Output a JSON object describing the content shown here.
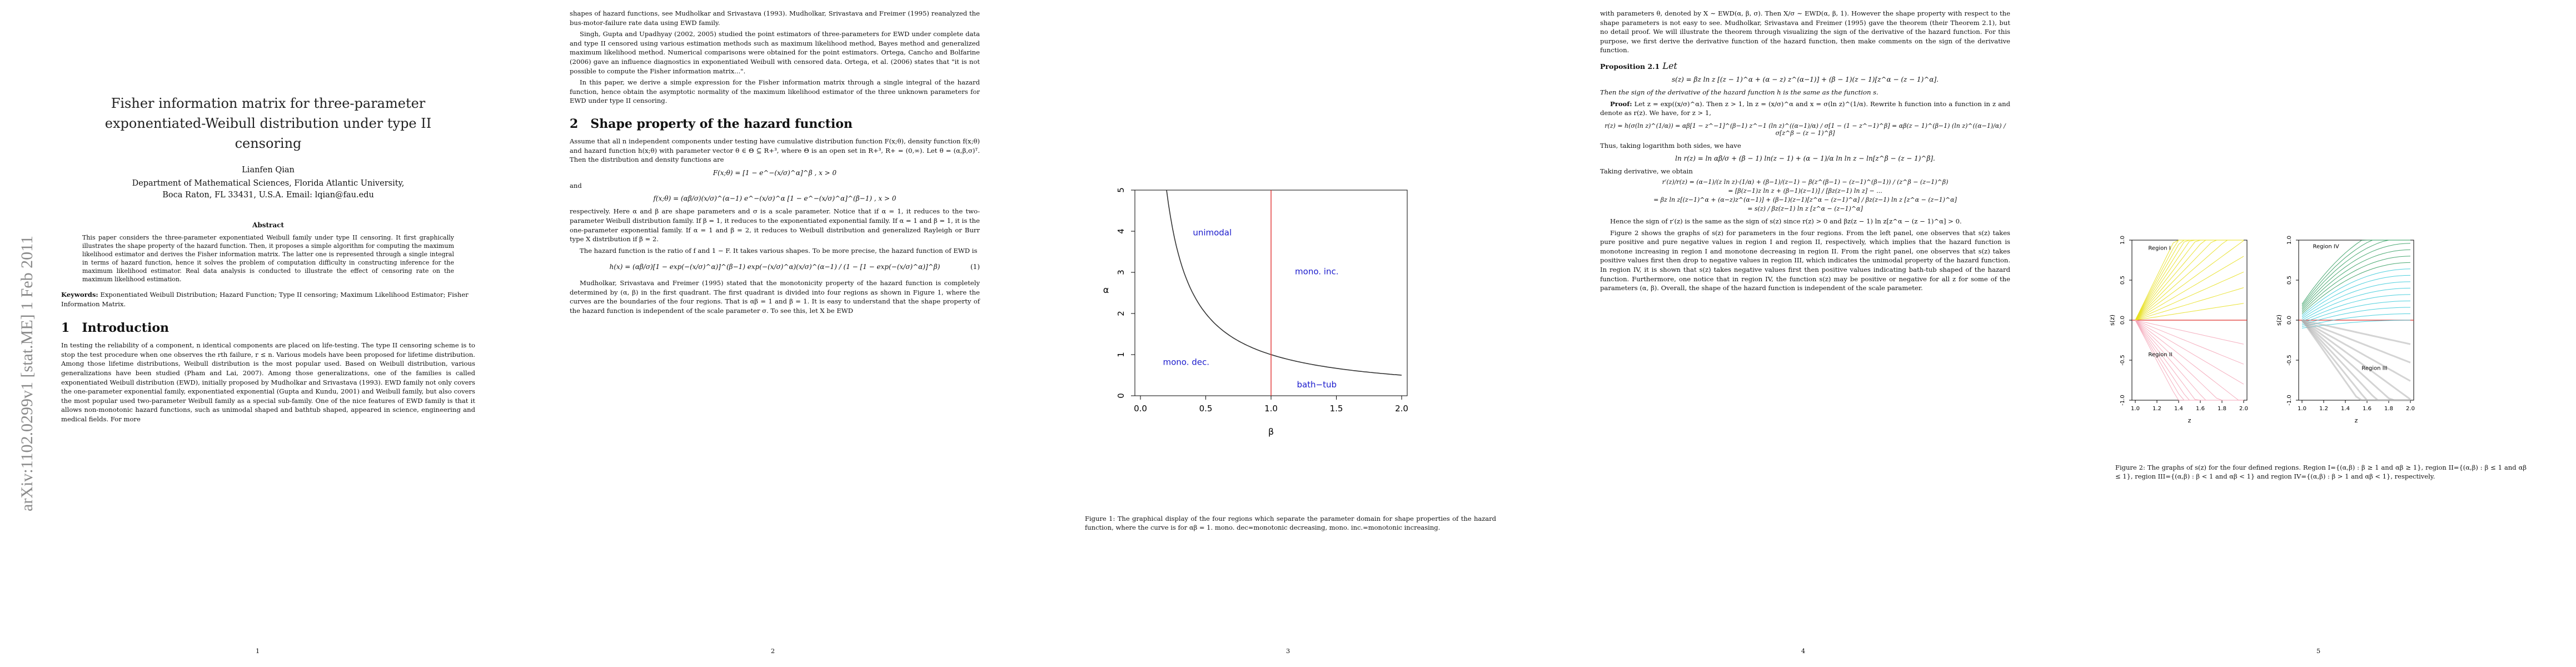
{
  "arxiv_stamp": "arXiv:1102.0299v1  [stat.ME]  1 Feb 2011",
  "page1": {
    "title_lines": [
      "Fisher information matrix for three-parameter",
      "exponentiated-Weibull distribution under type II",
      "censoring"
    ],
    "author": "Lianfen Qian",
    "affiliation_lines": [
      "Department of Mathematical Sciences, Florida Atlantic University,",
      "Boca Raton, FL 33431, U.S.A. Email: lqian@fau.edu"
    ],
    "abstract_heading": "Abstract",
    "abstract": "This paper considers the three-parameter exponentiated Weibull family under type II censoring. It first graphically illustrates the shape property of the hazard function. Then, it proposes a simple algorithm for computing the maximum likelihood estimator and derives the Fisher information matrix. The latter one is represented through a single integral in terms of hazard function, hence it solves the problem of computation difficulty in constructing inference for the maximum likelihood estimator. Real data analysis is conducted to illustrate the effect of censoring rate on the maximum likelihood estimation.",
    "keywords_label": "Keywords:",
    "keywords": "Exponentiated Weibull Distribution; Hazard Function; Type II censoring; Maximum Likelihood Estimator; Fisher Information Matrix.",
    "section_num": "1",
    "section_title": "Introduction",
    "intro": "In testing the reliability of a component, n identical components are placed on life-testing. The type II censoring scheme is to stop the test procedure when one observes the rth failure, r ≤ n. Various models have been proposed for lifetime distribution. Among those lifetime distributions, Weibull distribution is the most popular used. Based on Weibull distribution, various generalizations have been studied (Pham and Lai, 2007). Among those generalizations, one of the families is called exponentiated Weibull distribution (EWD), initially proposed by Mudholkar and Srivastava (1993). EWD family not only covers the one-parameter exponential family, exponentiated exponential (Gupta and Kundu, 2001) and Weibull family, but also covers the most popular used two-parameter Weibull family as a special sub-family. One of the nice features of EWD family is that it allows non-monotonic hazard functions, such as unimodal shaped and bathtub shaped, appeared in science, engineering and medical fields. For more",
    "page_number": "1"
  },
  "page2": {
    "p1": "shapes of hazard functions, see Mudholkar and Srivastava (1993). Mudholkar, Srivastava and Freimer (1995) reanalyzed the bus-motor-failure rate data using EWD family.",
    "p2": "Singh, Gupta and Upadhyay (2002, 2005) studied the point estimators of three-parameters for EWD under complete data and type II censored using various estimation methods such as maximum likelihood method, Bayes method and generalized maximum likelihood method. Numerical comparisons were obtained for the point estimators. Ortega, Cancho and Bolfarine (2006) gave an influence diagnostics in exponentiated Weibull with censored data. Ortega, et al. (2006) states that \"it is not possible to compute the Fisher information matrix...\".",
    "p3": "In this paper, we derive a simple expression for the Fisher information matrix through a single integral of the hazard function, hence obtain the asymptotic normality of the maximum likelihood estimator of the three unknown parameters for EWD under type II censoring.",
    "section_num": "2",
    "section_title": "Shape property of the hazard function",
    "p4": "Assume that all n independent components under testing have cumulative distribution function F(x;θ), density function f(x;θ) and hazard function h(x;θ) with parameter vector θ ∈ Θ ⊆ R+³, where Θ is an open set in R+³, R+ = (0,∞). Let θ = (α,β,σ)ᵀ. Then the distribution and density functions are",
    "eq_F": "F(x;θ) = [1 − e^−(x/σ)^α]^β ,   x > 0",
    "and": "and",
    "eq_f": "f(x;θ) = (αβ/σ)(x/σ)^(α−1) e^−(x/σ)^α [1 − e^−(x/σ)^α]^(β−1) ,   x > 0",
    "p5": "respectively. Here α and β are shape parameters and σ is a scale parameter. Notice that if α = 1, it reduces to the two-parameter Weibull distribution family. If β = 1, it reduces to the exponentiated exponential family. If α = 1 and β = 1, it is the one-parameter exponential family. If α = 1 and β = 2, it reduces to Weibull distribution and generalized Rayleigh or Burr type X distribution if β = 2.",
    "p6": "The hazard function is the ratio of f and 1 − F. It takes various shapes. To be more precise, the hazard function of EWD is",
    "eq_h": "h(x) = (αβ/σ)[1 − exp(−(x/σ)^α)]^(β−1) exp(−(x/σ)^α)(x/σ)^(α−1) / (1 − [1 − exp(−(x/σ)^α)]^β)",
    "eq_h_tag": "(1)",
    "p7": "Mudholkar, Srivastava and Freimer (1995) stated that the monotonicity property of the hazard function is completely determined by (α, β) in the first quadrant. The first quadrant is divided into four regions as shown in Figure 1, where the curves are the boundaries of the four regions. That is αβ = 1 and β = 1. It is easy to understand that the shape property of the hazard function is independent of the scale parameter σ. To see this, let X be EWD",
    "page_number": "2"
  },
  "page3": {
    "caption": "Figure 1: The graphical display of the four regions which separate the parameter domain for shape properties of the hazard function, where the curve is for αβ = 1. mono. dec=monotonic decreasing, mono. inc.=monotonic increasing.",
    "page_number": "3"
  },
  "chart_data": [
    {
      "type": "line",
      "xlabel": "β",
      "ylabel": "α",
      "xlim": [
        0.0,
        2.0
      ],
      "ylim": [
        0,
        5
      ],
      "xticks": [
        "0.0",
        "0.5",
        "1.0",
        "1.5",
        "2.0"
      ],
      "yticks": [
        "0",
        "1",
        "2",
        "3",
        "4",
        "5"
      ],
      "curve": "αβ = 1",
      "curve_color": "#333333",
      "vertical_line_beta": 1.0,
      "vertical_line_color": "#e0312f",
      "region_labels": [
        "unimodal",
        "mono. inc.",
        "mono. dec.",
        "bath−tub"
      ],
      "label_color": "#1a1acc",
      "grid": false
    },
    {
      "type": "line",
      "panel": "left",
      "ylabel": "s(z)",
      "xlabel": "z",
      "xlim": [
        1.0,
        2.0
      ],
      "ylim": [
        -1.0,
        1.0
      ],
      "xticks": [
        "1.0",
        "1.2",
        "1.4",
        "1.6",
        "1.8",
        "2.0"
      ],
      "yticks": [
        "-1.0",
        "-0.5",
        "0.0",
        "0.5",
        "1.0"
      ],
      "regions": [
        "Region I",
        "Region II"
      ],
      "colors": [
        "#e8e020",
        "#f4a6b8",
        "#e0312f"
      ]
    },
    {
      "type": "line",
      "panel": "right",
      "ylabel": "s(z)",
      "xlabel": "z",
      "xlim": [
        1.0,
        2.0
      ],
      "ylim": [
        -1.0,
        1.0
      ],
      "xticks": [
        "1.0",
        "1.2",
        "1.4",
        "1.6",
        "1.8",
        "2.0"
      ],
      "yticks": [
        "-1.0",
        "-0.5",
        "0.0",
        "0.5",
        "1.0"
      ],
      "regions": [
        "Region IV",
        "Region III"
      ],
      "colors": [
        "#30c8d8",
        "#2a9a5a",
        "#b0b0b0",
        "#e0312f"
      ]
    }
  ],
  "page4": {
    "p1": "with parameters θ, denoted by X ∼ EWD(α, β, σ). Then X/σ ∼ EWD(α, β, 1). However the shape property with respect to the shape parameters is not easy to see. Mudholkar, Srivastava and Freimer (1995) gave the theorem (their Theorem 2.1), but no detail proof. We will illustrate the theorem through visualizing the sign of the derivative of the hazard function. For this purpose, we first derive the derivative function of the hazard function, then make comments on the sign of the derivative function.",
    "prop_label": "Proposition 2.1",
    "prop_let": "Let",
    "prop_eq": "s(z) = βz ln z [(z − 1)^α + (α − z) z^(α−1)] + (β − 1)(z − 1)[z^α − (z − 1)^α].",
    "prop_text": "Then the sign of the derivative of the hazard function h is the same as the function s.",
    "proof_label": "Proof:",
    "proof_text": "Let z = exp((x/σ)^α). Then z > 1, ln z = (x/σ)^α and x = σ(ln z)^(1/α). Rewrite h function into a function in z and denote as r(z). We have, for z > 1,",
    "eq_r": "r(z) = h(σ(ln z)^(1/α)) = αβ[1 − z^−1]^(β−1) z^−1 (ln z)^((α−1)/α) / σ[1 − (1 − z^−1)^β] = αβ(z − 1)^(β−1) (ln z)^((α−1)/α) / σ[z^β − (z − 1)^β]",
    "p2": "Thus, taking logarithm both sides, we have",
    "eq_ln": "ln r(z) = ln αβ/σ + (β − 1) ln(z − 1) + (α − 1)/α ln ln z − ln[z^β − (z − 1)^β].",
    "p3": "Taking derivative, we obtain",
    "eq_d1": "r′(z)/r(z) = (α−1)/(z ln z)·(1/α) + (β−1)/(z−1) − β(z^(β−1) − (z−1)^(β−1)) / (z^β − (z−1)^β)",
    "eq_d2": "= [β(z−1)z ln z + (β−1)(z−1)] / [βz(z−1) ln z] − ...",
    "eq_d3": "= βz ln z[(z−1)^α + (α−z)z^(α−1)] + (β−1)(z−1)[z^α − (z−1)^α] / βz(z−1) ln z [z^α − (z−1)^α]",
    "eq_d4": "= s(z) / βz(z−1) ln z [z^α − (z−1)^α]",
    "p4": "Hence the sign of r′(z) is the same as the sign of s(z) since r(z) > 0 and βz(z − 1) ln z[z^α − (z − 1)^α] > 0.",
    "p5": "Figure 2 shows the graphs of s(z) for parameters in the four regions. From the left panel, one observes that s(z) takes pure positive and pure negative values in region I and region II, respectively, which implies that the hazard function is monotone increasing in region I and monotone decreasing in region II. From the right panel, one observes that s(z) takes positive values first then drop to negative values in region III, which indicates the unimodal property of the hazard function. In region IV, it is shown that s(z) takes negative values first then positive values indicating bath-tub shaped of the hazard function. Furthermore, one notice that in region IV, the function s(z) may be positive or negative for all z for some of the parameters (α, β). Overall, the shape of the hazard function is independent of the scale parameter.",
    "page_number": "4"
  },
  "page5": {
    "caption": "Figure 2: The graphs of s(z) for the four defined regions. Region I={(α,β) : β ≥ 1 and αβ ≥ 1}, region II={(α,β) : β ≤ 1 and αβ ≤ 1}, region III={(α,β) : β < 1 and αβ < 1} and region IV={(α,β) : β > 1 and αβ < 1}, respectively.",
    "page_number": "5"
  }
}
